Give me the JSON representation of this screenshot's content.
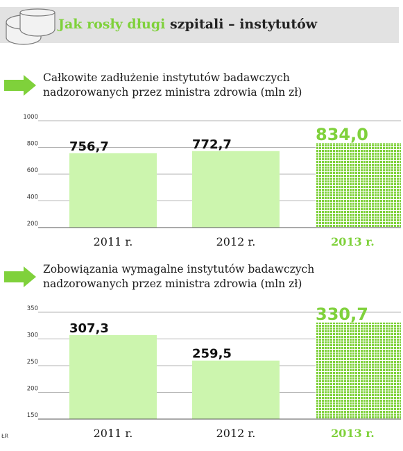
{
  "header": {
    "title_green": "Jak rosły długi",
    "title_dark": "szpitali – instytutów",
    "green": "#7fd13b"
  },
  "source_mark": "ŁR",
  "chart_data": [
    {
      "type": "bar",
      "title": "Całkowite zadłużenie instytutów badawczych\nnadzorowanych przez ministra zdrowia (mln zł)",
      "categories": [
        "2011 r.",
        "2012 r.",
        "2013 r."
      ],
      "values": [
        756.7,
        772.7,
        834.0
      ],
      "value_labels": [
        "756,7",
        "772,7",
        "834,0"
      ],
      "yticks": [
        200,
        400,
        600,
        800,
        1000
      ],
      "ylim": [
        200,
        1000
      ],
      "highlight_index": 2,
      "colors": {
        "bar": "#ccf5ae",
        "highlight": "#7fd13b",
        "axis_label": "#1a1a1a",
        "highlight_text": "#7fd13b"
      }
    },
    {
      "type": "bar",
      "title": "Zobowiązania wymagalne instytutów badawczych\nnadzorowanych przez ministra zdrowia (mln zł)",
      "categories": [
        "2011 r.",
        "2012 r.",
        "2013 r."
      ],
      "values": [
        307.3,
        259.5,
        330.7
      ],
      "value_labels": [
        "307,3",
        "259,5",
        "330,7"
      ],
      "yticks": [
        150,
        200,
        250,
        300,
        350
      ],
      "ylim": [
        150,
        350
      ],
      "highlight_index": 2,
      "colors": {
        "bar": "#ccf5ae",
        "highlight": "#7fd13b",
        "axis_label": "#1a1a1a",
        "highlight_text": "#7fd13b"
      }
    }
  ]
}
